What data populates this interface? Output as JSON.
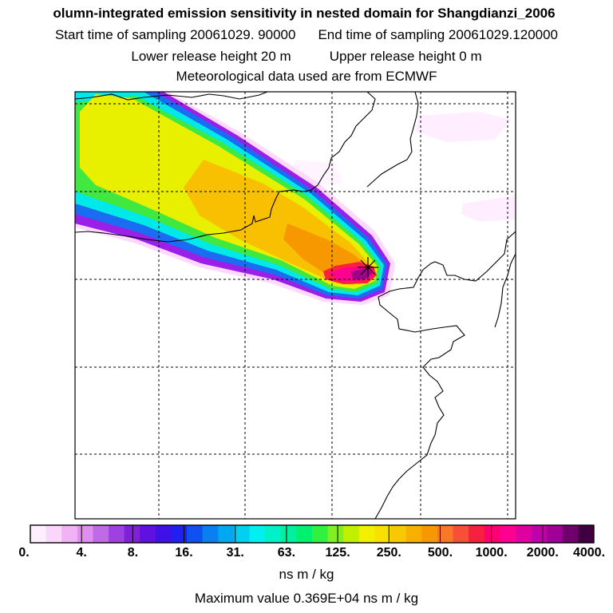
{
  "header": {
    "title": "olumn-integrated emission sensitivity in nested domain for Shangdianzi_2006",
    "start_label": "Start time of sampling 20061029. 90000",
    "end_label": "End time of sampling 20061029.120000",
    "lower_label": "Lower release height   20 m",
    "upper_label": "Upper release height    0 m",
    "met_label": "Meteorological data used are from ECMWF"
  },
  "colors": {
    "plume_outer": "#ffd8ff",
    "plume_purple": "#9a20e8",
    "plume_blue": "#1a6cf0",
    "plume_cyan": "#00e8e8",
    "plume_green": "#40e840",
    "plume_yellow": "#f0f000",
    "plume_orange": "#f8b000",
    "plume_peak": "#ff0090",
    "plume_core": "#c0008c"
  },
  "legend": {
    "colors": [
      "#ffeeff",
      "#fbd6fb",
      "#f0b2f5",
      "#e08ef0",
      "#c06ae8",
      "#a040e0",
      "#8020d8",
      "#6010e0",
      "#4010e8",
      "#2020f0",
      "#1050f0",
      "#0a80f0",
      "#00a8f0",
      "#00d0f0",
      "#00f0f0",
      "#00f0c8",
      "#00f0a0",
      "#00f070",
      "#30f040",
      "#80f020",
      "#c0f000",
      "#f0f000",
      "#f8e000",
      "#f8c800",
      "#f8b000",
      "#f89800",
      "#f87828",
      "#f85038",
      "#f82040",
      "#ff0070",
      "#ff0090",
      "#e000a0",
      "#c000a8",
      "#a00098",
      "#70006c",
      "#400040"
    ],
    "tick_labels": [
      "0.",
      "4.",
      "8.",
      "16.",
      "31.",
      "63.",
      "125.",
      "250.",
      "500.",
      "1000.",
      "2000.",
      "4000."
    ],
    "units": "ns m / kg"
  },
  "footer": {
    "max_value": "Maximum value  0.369E+04 ns m / kg"
  },
  "station": {
    "name": "Shangdianzi"
  }
}
